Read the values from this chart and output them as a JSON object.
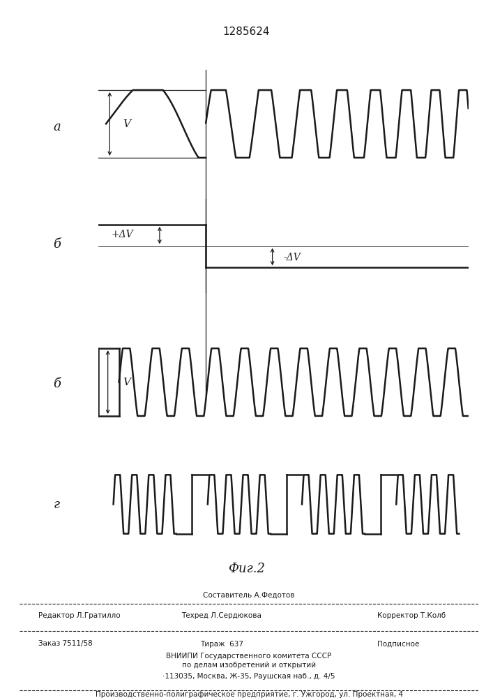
{
  "title": "1285624",
  "fig_caption": "Фиг.2",
  "label_a": "а",
  "label_b": "б",
  "label_g": "г",
  "label_V": "V",
  "label_plusDV": "+ΔV",
  "label_minusDV": "-ΔV",
  "bg_color": "#ffffff",
  "line_color": "#1a1a1a",
  "footer_line1_center": "Составитель А.Федотов",
  "footer_line1_left": "Редактор Л.Гратилло",
  "footer_line1_center2": "Техред Л.Сердюкова",
  "footer_line1_right": "Корректор Т.Колб",
  "footer_line2_left": "Заказ 7511/58",
  "footer_line2_center": "Тираж  637",
  "footer_line2_right": "Подписное",
  "footer_line3": "ВНИИПИ Государственного комитета СССР",
  "footer_line4": "по делам изобретений и открытий",
  "footer_line5": "·113035, Москва, Ж-35, Раушская наб., д. 4/5",
  "footer_line6": "Производственно-полиграфическое предприятие, г. Ужгород, ул. Проектная, 4"
}
